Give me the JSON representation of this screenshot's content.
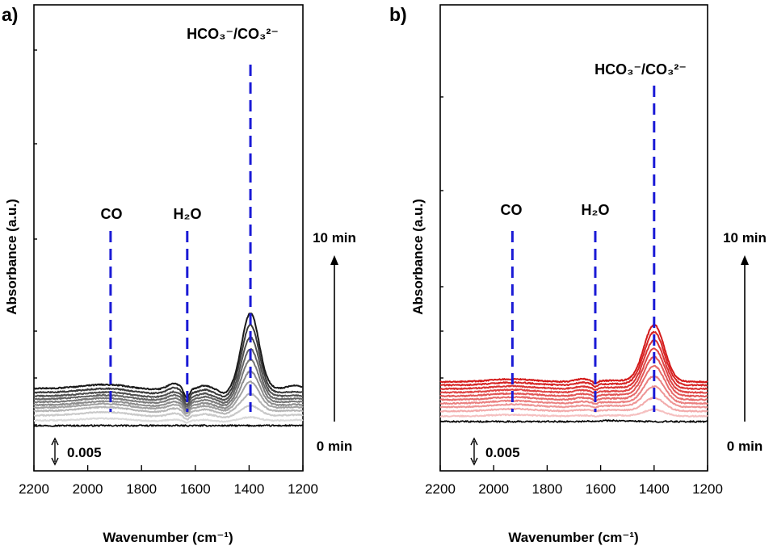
{
  "chart_data": [
    {
      "panel_label": "a)",
      "type": "line",
      "xlabel": "Wavenumber (cm⁻¹)",
      "ylabel": "Absorbance (a.u.)",
      "x_ticks": [
        "2200",
        "2000",
        "1800",
        "1600",
        "1400",
        "1200"
      ],
      "xlim": [
        2200,
        1200
      ],
      "x_reversed": true,
      "scale_bar_label": "0.005",
      "time_start_label": "0 min",
      "time_end_label": "10 min",
      "annotations": [
        {
          "label": "CO",
          "x": 1915
        },
        {
          "label": "H₂O",
          "x": 1630
        },
        {
          "label": "HCO₃⁻/CO₃²⁻",
          "x": 1395
        }
      ],
      "annotation_line_color": "#1a1ad6",
      "series_colors": [
        "#000000",
        "#d9d9d9",
        "#c9c9c9",
        "#b4b4b4",
        "#a0a0a0",
        "#8c8c8c",
        "#787878",
        "#646464",
        "#505050",
        "#3a3a3a",
        "#1a1a1a"
      ],
      "series": [
        {
          "offset": 0.0,
          "peak_height": 0.0
        },
        {
          "offset": 0.001,
          "peak_height": 0.001
        },
        {
          "offset": 0.0022,
          "peak_height": 0.003
        },
        {
          "offset": 0.0034,
          "peak_height": 0.0052
        },
        {
          "offset": 0.0044,
          "peak_height": 0.0078
        },
        {
          "offset": 0.0052,
          "peak_height": 0.0102
        },
        {
          "offset": 0.0061,
          "peak_height": 0.0128
        },
        {
          "offset": 0.007,
          "peak_height": 0.0152
        },
        {
          "offset": 0.0079,
          "peak_height": 0.0178
        },
        {
          "offset": 0.009,
          "peak_height": 0.0204
        },
        {
          "offset": 0.0102,
          "peak_height": 0.0228
        }
      ]
    },
    {
      "panel_label": "b)",
      "type": "line",
      "xlabel": "Wavenumber (cm⁻¹)",
      "ylabel": "Absorbance (a.u.)",
      "x_ticks": [
        "2200",
        "2000",
        "1800",
        "1600",
        "1400",
        "1200"
      ],
      "xlim": [
        2200,
        1200
      ],
      "x_reversed": true,
      "scale_bar_label": "0.005",
      "time_start_label": "0 min",
      "time_end_label": "10 min",
      "annotations": [
        {
          "label": "CO",
          "x": 1930
        },
        {
          "label": "H₂O",
          "x": 1620
        },
        {
          "label": "HCO₃⁻/CO₃²⁻",
          "x": 1400
        }
      ],
      "annotation_line_color": "#1a1ad6",
      "series_colors": [
        "#000000",
        "#f5c0c0",
        "#f2aaaa",
        "#ee9595",
        "#ea8080",
        "#e66b6b",
        "#e25656",
        "#de4444",
        "#da3333",
        "#d72525",
        "#d41a1a"
      ],
      "series": [
        {
          "offset": 0.0,
          "peak_height": 0.0
        },
        {
          "offset": 0.001,
          "peak_height": 0.002
        },
        {
          "offset": 0.0021,
          "peak_height": 0.004
        },
        {
          "offset": 0.0032,
          "peak_height": 0.0062
        },
        {
          "offset": 0.0043,
          "peak_height": 0.0082
        },
        {
          "offset": 0.0054,
          "peak_height": 0.0102
        },
        {
          "offset": 0.0065,
          "peak_height": 0.0118
        },
        {
          "offset": 0.0076,
          "peak_height": 0.0132
        },
        {
          "offset": 0.0087,
          "peak_height": 0.0146
        },
        {
          "offset": 0.0098,
          "peak_height": 0.016
        },
        {
          "offset": 0.0108,
          "peak_height": 0.0172
        }
      ]
    }
  ]
}
